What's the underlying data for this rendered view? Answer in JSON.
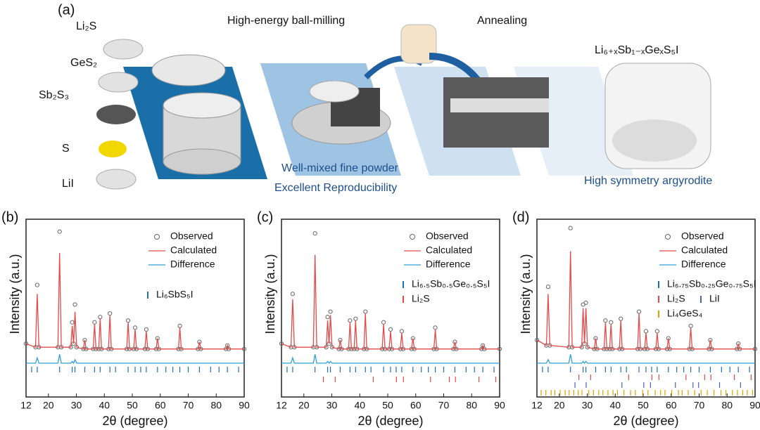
{
  "schematic": {
    "panel_label": "(a)",
    "precursors": [
      "Li₂S",
      "GeS₂",
      "Sb₂S₃",
      "S",
      "LiI"
    ],
    "step1": "High-energy ball-milling",
    "step2": "Annealing",
    "product": "Li₆₊ₓSb₁₋ₓGeₓS₅I",
    "note1": "Well-mixed fine powder",
    "note2": "Excellent Reproducibility",
    "note3": "High symmetry argyrodite"
  },
  "chart_data": [
    {
      "type": "line",
      "panel_label": "(b)",
      "x_label": "2θ (degree)",
      "y_label": "Intensity (a.u.)",
      "xlim": [
        12,
        90
      ],
      "xticks": [
        12,
        20,
        30,
        40,
        50,
        60,
        70,
        80,
        90
      ],
      "ylim": [
        0,
        100
      ],
      "x": [
        12,
        15.4,
        16,
        16.6,
        23.4,
        24,
        24.6,
        28,
        28.5,
        29,
        29.5,
        30.1,
        32.5,
        33,
        33.5,
        36,
        36.5,
        37,
        38,
        38.5,
        39,
        41.5,
        42,
        42.5,
        48,
        48.5,
        49,
        50.5,
        51,
        51.5,
        54.5,
        55,
        55.5,
        58.5,
        59,
        59.5,
        66.5,
        67,
        67.5,
        73.5,
        74,
        74.5,
        83.5,
        84,
        84.5,
        90
      ],
      "series": [
        {
          "name": "Observed",
          "color": "#666666",
          "marker": "circle",
          "values": [
            30,
            28,
            63,
            28,
            28,
            93,
            28,
            28,
            42,
            30,
            52,
            28,
            27,
            32,
            27,
            27,
            42,
            27,
            27,
            45,
            27,
            27,
            47,
            27,
            27,
            43,
            27,
            27,
            39,
            27,
            27,
            38,
            27,
            27,
            33,
            27,
            27,
            40,
            27,
            27,
            31,
            27,
            27,
            29,
            27,
            27
          ]
        },
        {
          "name": "Calculated",
          "color": "#e34a4a",
          "values": [
            30,
            28,
            58,
            28,
            28,
            81,
            28,
            28,
            40,
            30,
            48,
            28,
            27,
            32,
            27,
            27,
            41,
            27,
            27,
            44,
            27,
            27,
            46,
            27,
            27,
            42,
            27,
            27,
            38,
            27,
            27,
            37,
            27,
            27,
            33,
            27,
            27,
            39,
            27,
            27,
            31,
            27,
            27,
            29,
            27,
            27
          ]
        },
        {
          "name": "Difference",
          "color": "#2e9fd8",
          "values": [
            19,
            19,
            22,
            19,
            19,
            24,
            19,
            19,
            20,
            19,
            21,
            19,
            19,
            19,
            19,
            19,
            19,
            19,
            19,
            19,
            19,
            19,
            19,
            19,
            19,
            19,
            19,
            19,
            19,
            19,
            19,
            19,
            19,
            19,
            19,
            19,
            19,
            19,
            19,
            19,
            19,
            19,
            19,
            19,
            19,
            19
          ]
        }
      ],
      "reflections": [
        {
          "name": "Li₆SbS₅I",
          "color": "#1f6fb8",
          "x": [
            14,
            16,
            24,
            28.5,
            29.5,
            33,
            36.5,
            38.5,
            42,
            44,
            48.5,
            51,
            53,
            55,
            59,
            62,
            64.5,
            67,
            70,
            74,
            78,
            81,
            84,
            88
          ]
        }
      ]
    },
    {
      "type": "line",
      "panel_label": "(c)",
      "x_label": "2θ (degree)",
      "y_label": "Intensity (a.u.)",
      "xlim": [
        12,
        90
      ],
      "xticks": [
        12,
        20,
        30,
        40,
        50,
        60,
        70,
        80,
        90
      ],
      "ylim": [
        0,
        100
      ],
      "x": [
        12,
        15.4,
        16,
        16.6,
        23.4,
        24,
        24.6,
        28,
        28.5,
        29,
        29.5,
        30.1,
        32.5,
        33,
        33.5,
        36,
        36.5,
        37,
        38,
        38.5,
        39,
        41.5,
        42,
        42.5,
        48,
        48.5,
        49,
        50.5,
        51,
        51.5,
        54.5,
        55,
        55.5,
        58.5,
        59,
        59.5,
        66.5,
        67,
        67.5,
        73.5,
        74,
        74.5,
        83.5,
        84,
        84.5,
        90
      ],
      "series": [
        {
          "name": "Observed",
          "color": "#666666",
          "marker": "circle",
          "values": [
            30,
            28,
            58,
            28,
            28,
            92,
            28,
            28,
            45,
            30,
            48,
            28,
            27,
            32,
            27,
            27,
            43,
            27,
            27,
            44,
            27,
            27,
            48,
            27,
            27,
            42,
            27,
            27,
            38,
            27,
            27,
            37,
            27,
            27,
            33,
            27,
            27,
            39,
            27,
            27,
            31,
            27,
            27,
            29,
            27,
            27
          ]
        },
        {
          "name": "Calculated",
          "color": "#e34a4a",
          "values": [
            30,
            28,
            55,
            28,
            28,
            80,
            28,
            28,
            43,
            30,
            46,
            28,
            27,
            32,
            27,
            27,
            42,
            27,
            27,
            43,
            27,
            27,
            47,
            27,
            27,
            41,
            27,
            27,
            37,
            27,
            27,
            36,
            27,
            27,
            33,
            27,
            27,
            38,
            27,
            27,
            31,
            27,
            27,
            29,
            27,
            27
          ]
        },
        {
          "name": "Difference",
          "color": "#2e9fd8",
          "values": [
            19,
            19,
            22,
            19,
            19,
            24,
            19,
            19,
            20,
            19,
            20,
            19,
            19,
            19,
            19,
            19,
            19,
            19,
            19,
            19,
            19,
            19,
            19,
            19,
            19,
            19,
            19,
            19,
            19,
            19,
            19,
            19,
            19,
            19,
            19,
            19,
            19,
            19,
            19,
            19,
            19,
            19,
            19,
            19,
            19,
            19
          ]
        }
      ],
      "reflections": [
        {
          "name": "Li₆.₅Sb₀.₅Ge₀.₅S₅I",
          "color": "#1f6fb8",
          "x": [
            14,
            16,
            24,
            28.5,
            29.5,
            33,
            36.5,
            38.5,
            42,
            44,
            48.5,
            51,
            53,
            55,
            59,
            62,
            64.5,
            67,
            70,
            74,
            78,
            81,
            84,
            88
          ]
        },
        {
          "name": "Li₂S",
          "color": "#e34a4a",
          "x": [
            27,
            31.2,
            44.8,
            53.1,
            55.6,
            65.3,
            72,
            74.2,
            82.6,
            88.6
          ]
        }
      ]
    },
    {
      "type": "line",
      "panel_label": "(d)",
      "x_label": "2θ (degree)",
      "y_label": "Intensity (a.u.)",
      "xlim": [
        12,
        90
      ],
      "xticks": [
        12,
        20,
        30,
        40,
        50,
        60,
        70,
        80,
        90
      ],
      "ylim": [
        0,
        100
      ],
      "x": [
        12,
        15.4,
        16,
        16.6,
        23.4,
        24,
        24.6,
        28,
        28.5,
        29,
        29.5,
        30.1,
        32.5,
        33,
        33.5,
        36,
        36.5,
        37,
        38,
        38.5,
        39,
        41.5,
        42,
        42.5,
        48,
        48.5,
        49,
        50.5,
        51,
        51.5,
        54.5,
        55,
        55.5,
        58.5,
        59,
        59.5,
        66.5,
        67,
        67.5,
        73.5,
        74,
        74.5,
        83.5,
        84,
        84.5,
        90
      ],
      "series": [
        {
          "name": "Observed",
          "color": "#666666",
          "marker": "circle",
          "values": [
            32,
            29,
            62,
            29,
            28,
            95,
            28,
            28,
            52,
            30,
            53,
            28,
            27,
            33,
            27,
            27,
            43,
            27,
            27,
            42,
            27,
            27,
            44,
            27,
            27,
            48,
            27,
            27,
            37,
            27,
            27,
            37,
            27,
            27,
            33,
            27,
            27,
            40,
            27,
            27,
            32,
            27,
            27,
            30,
            27,
            27
          ]
        },
        {
          "name": "Calculated",
          "color": "#e34a4a",
          "values": [
            32,
            29,
            58,
            29,
            28,
            82,
            28,
            28,
            50,
            30,
            50,
            28,
            27,
            33,
            27,
            27,
            42,
            27,
            27,
            41,
            27,
            27,
            43,
            27,
            27,
            47,
            27,
            27,
            36,
            27,
            27,
            36,
            27,
            27,
            33,
            27,
            27,
            39,
            27,
            27,
            32,
            27,
            27,
            30,
            27,
            27
          ]
        },
        {
          "name": "Difference",
          "color": "#2e9fd8",
          "values": [
            19,
            19,
            21,
            19,
            19,
            24,
            19,
            19,
            20,
            19,
            20,
            19,
            19,
            19,
            19,
            19,
            19,
            19,
            19,
            19,
            19,
            19,
            19,
            19,
            19,
            19,
            19,
            19,
            19,
            19,
            19,
            19,
            19,
            19,
            19,
            19,
            19,
            19,
            19,
            19,
            19,
            19,
            19,
            19,
            19,
            19
          ]
        }
      ],
      "reflections": [
        {
          "name": "Li₆.₇₅Sb₀.₂₅Ge₀.₇₅S₅I",
          "color": "#1f6fb8",
          "x": [
            14,
            16,
            24,
            28.5,
            29.5,
            33,
            36.5,
            38.5,
            42,
            44,
            48.5,
            51,
            53,
            55,
            59,
            62,
            64.5,
            67,
            70,
            74,
            78,
            81,
            84,
            88
          ]
        },
        {
          "name": "Li₂S",
          "color": "#e34a4a",
          "x": [
            27,
            31.2,
            44.8,
            53.1,
            55.6,
            65.3,
            72,
            74.2,
            82.6,
            88.6
          ]
        },
        {
          "name": "LiI",
          "color": "#4a5fc1",
          "x": [
            25.6,
            29.6,
            42.4,
            50.2,
            52.6,
            61.5,
            67.8,
            69.8,
            77.3,
            84.8
          ]
        },
        {
          "name": "Li₄GeS₄",
          "color": "#e0a000",
          "x": [
            13.5,
            15.2,
            17.1,
            18.4,
            20.3,
            22.1,
            23.5,
            25.2,
            26.8,
            28.1,
            30.5,
            32.2,
            34.1,
            35.6,
            37.4,
            39.2,
            40.8,
            43.1,
            45.5,
            47.2,
            49.8,
            51.7,
            54.3,
            56.2,
            57.8,
            60.2,
            62.6,
            63.9,
            66.1,
            68.4,
            70.7,
            72.9,
            75.3,
            77.8,
            79.6,
            81.9,
            83.7,
            85.6,
            87.2,
            89.1
          ]
        }
      ]
    }
  ]
}
